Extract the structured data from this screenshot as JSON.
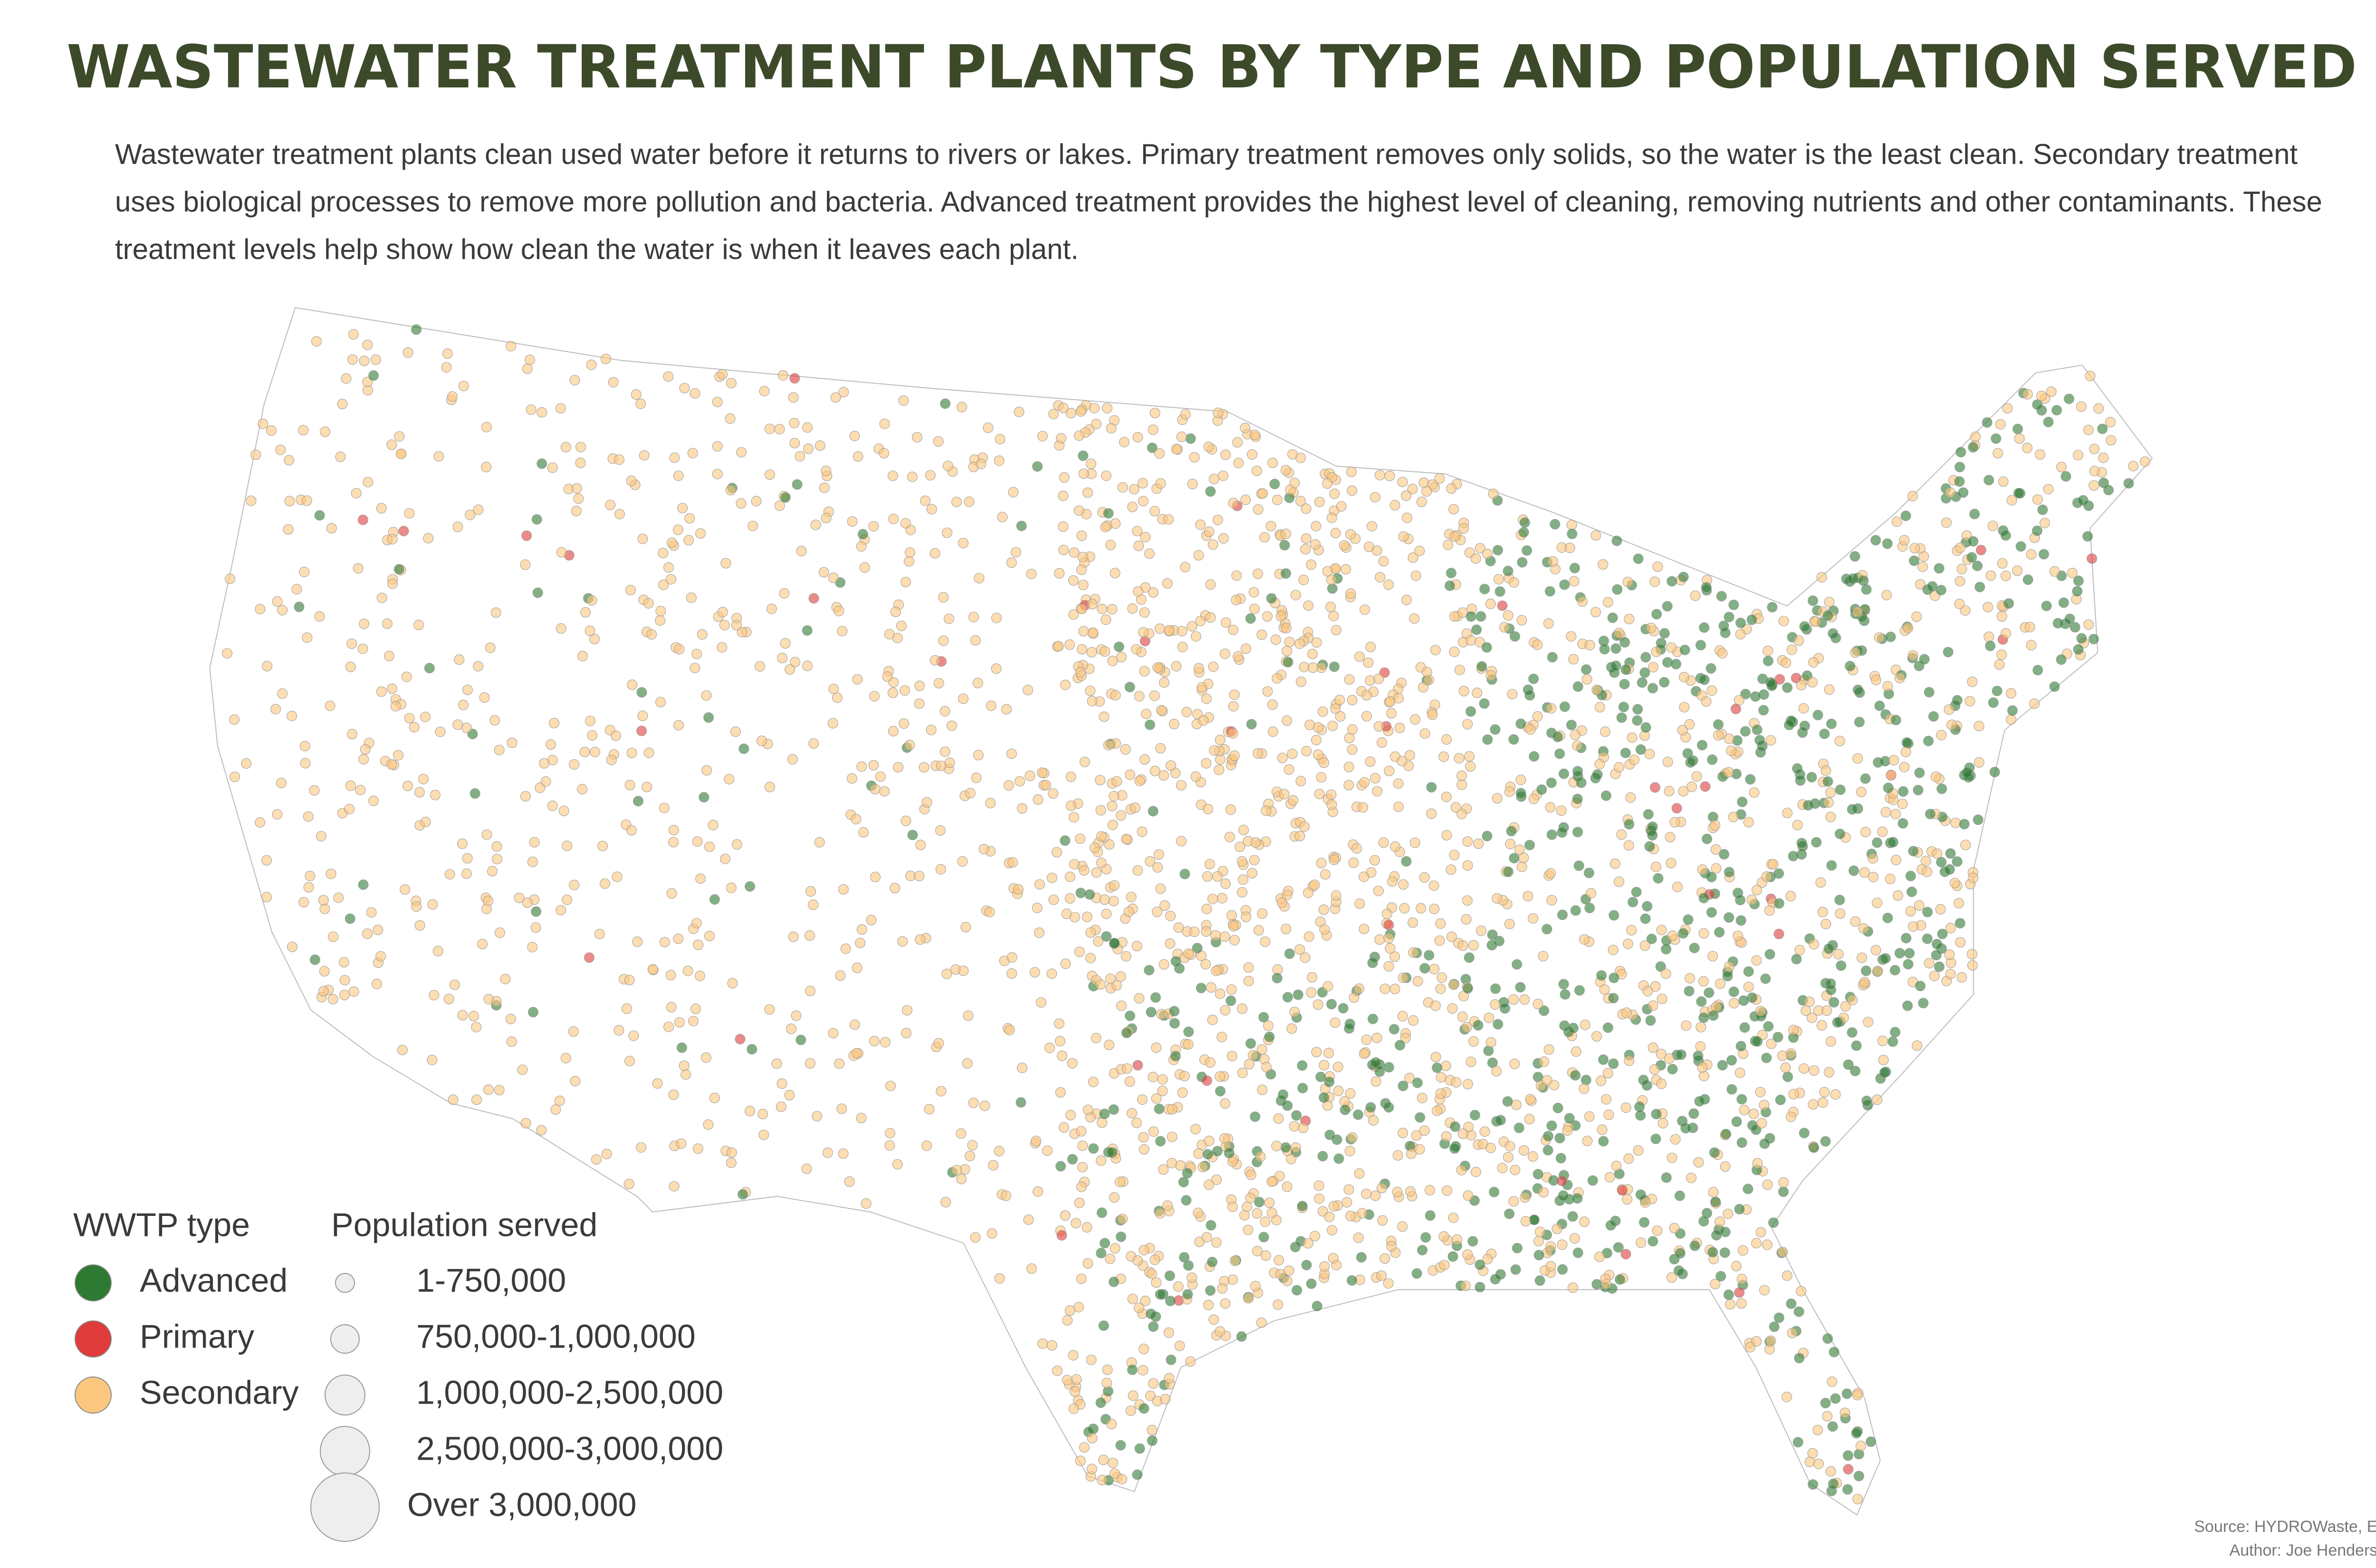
{
  "header": {
    "title": "WASTEWATER TREATMENT PLANTS BY TYPE AND POPULATION SERVED",
    "description": "Wastewater treatment plants clean used water before it returns to rivers or lakes. Primary treatment removes only solids, so the water is the least clean. Secondary treatment uses biological processes to remove more pollution and bacteria. Advanced treatment provides the highest level of cleaning, removing nutrients and other contaminants. These treatment levels help show how clean the water is when it leaves each plant."
  },
  "legend": {
    "type": {
      "title": "WWTP type",
      "items": [
        {
          "label": "Advanced",
          "color": "#2e7a32"
        },
        {
          "label": "Primary",
          "color": "#e03c3c"
        },
        {
          "label": "Secondary",
          "color": "#fbc77e"
        }
      ]
    },
    "population": {
      "title": "Population served",
      "items": [
        {
          "label": "1-750,000"
        },
        {
          "label": "750,000-1,000,000"
        },
        {
          "label": "1,000,000-2,500,000"
        },
        {
          "label": "2,500,000-3,000,000"
        },
        {
          "label": "Over 3,000,000"
        }
      ]
    }
  },
  "footer": {
    "source": "Source: HYDROWaste, ESRI",
    "author": "Author: Joe Hendershott"
  }
}
